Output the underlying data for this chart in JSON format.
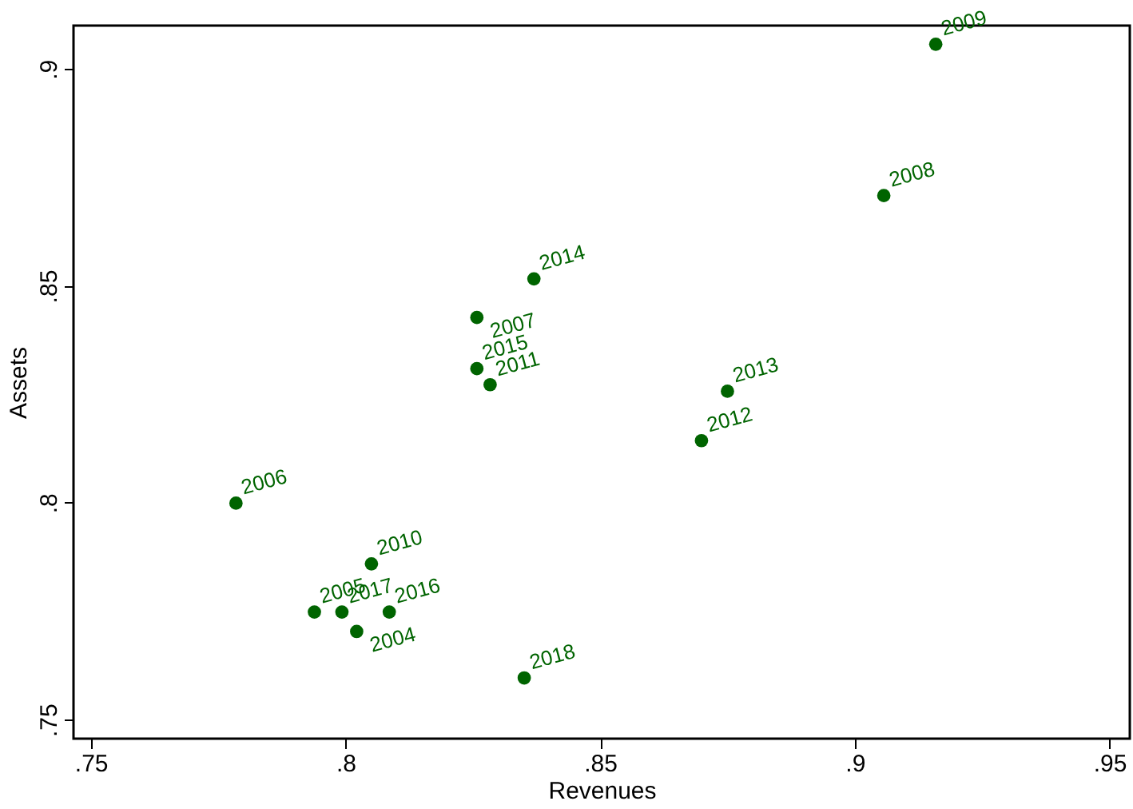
{
  "chart_data": {
    "type": "scatter",
    "xlabel": "Revenues",
    "ylabel": "Assets",
    "x": [
      0.9159,
      0.9057,
      0.837,
      0.8258,
      0.8258,
      0.8284,
      0.875,
      0.8699,
      0.7785,
      0.8051,
      0.7939,
      0.7993,
      0.8086,
      0.8022,
      0.8351
    ],
    "series": [
      {
        "color": "#006400",
        "values": [
          0.9057,
          0.8708,
          0.8516,
          0.8427,
          0.8309,
          0.8272,
          0.8257,
          0.8143,
          0.7999,
          0.7859,
          0.7748,
          0.7748,
          0.7748,
          0.7703,
          0.7596
        ]
      }
    ],
    "annotations": [
      {
        "text": "2009",
        "x": 0.9159,
        "y": 0.9057
      },
      {
        "text": "2008",
        "x": 0.9057,
        "y": 0.8708
      },
      {
        "text": "2014",
        "x": 0.837,
        "y": 0.8516
      },
      {
        "text": "2007",
        "x": 0.8258,
        "y": 0.8427
      },
      {
        "text": "2015",
        "x": 0.8258,
        "y": 0.8309
      },
      {
        "text": "2011",
        "x": 0.8284,
        "y": 0.8272
      },
      {
        "text": "2013",
        "x": 0.875,
        "y": 0.8257
      },
      {
        "text": "2012",
        "x": 0.8699,
        "y": 0.8143
      },
      {
        "text": "2006",
        "x": 0.7785,
        "y": 0.7999
      },
      {
        "text": "2010",
        "x": 0.8051,
        "y": 0.7859
      },
      {
        "text": "2005",
        "x": 0.7939,
        "y": 0.7748
      },
      {
        "text": "2017",
        "x": 0.7993,
        "y": 0.7748
      },
      {
        "text": "2016",
        "x": 0.8086,
        "y": 0.7748
      },
      {
        "text": "2004",
        "x": 0.8022,
        "y": 0.7703
      },
      {
        "text": "2018",
        "x": 0.8351,
        "y": 0.7596
      }
    ],
    "xlim": [
      0.7466,
      0.954
    ],
    "ylim": [
      0.7456,
      0.91
    ],
    "xticks": [
      {
        "value": 0.75,
        "label": ".75"
      },
      {
        "value": 0.8,
        "label": ".8"
      },
      {
        "value": 0.85,
        "label": ".85"
      },
      {
        "value": 0.9,
        "label": ".9"
      },
      {
        "value": 0.95,
        "label": ".95"
      }
    ],
    "yticks": [
      {
        "value": 0.75,
        "label": ".75"
      },
      {
        "value": 0.8,
        "label": ".8"
      },
      {
        "value": 0.85,
        "label": ".85"
      },
      {
        "value": 0.9,
        "label": ".9"
      }
    ],
    "marker": "circle",
    "grid": false
  }
}
